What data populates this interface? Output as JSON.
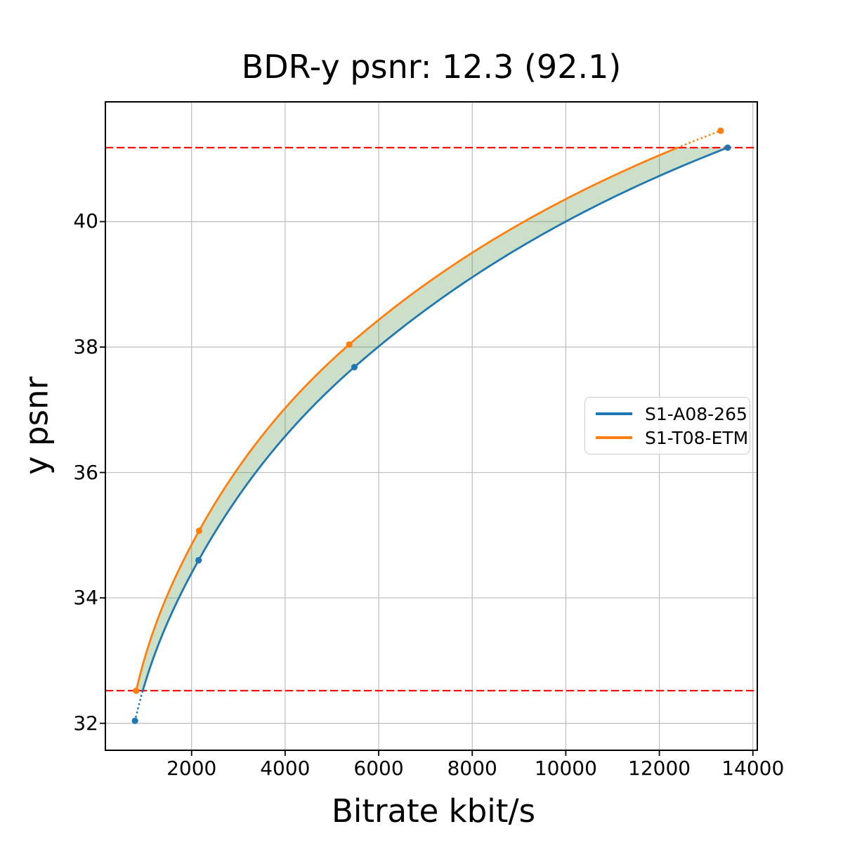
{
  "title": "BDR-y psnr: 12.3 (92.1)",
  "chart_data": {
    "type": "line",
    "title": "BDR-y psnr: 12.3 (92.1)",
    "xlabel": "Bitrate kbit/s",
    "ylabel": "y psnr",
    "xlim": [
      157,
      14094
    ],
    "ylim": [
      31.57,
      41.91
    ],
    "xticks": [
      2000,
      4000,
      6000,
      8000,
      10000,
      12000,
      14000
    ],
    "yticks": [
      32,
      34,
      36,
      38,
      40
    ],
    "grid": true,
    "grid_color": "#bdbdbd",
    "frame_color": "#000000",
    "interpolation": "pchip-log-x",
    "series": [
      {
        "name": "S1-A08-265",
        "color": "#1f77b4",
        "points": [
          [
            790,
            32.04
          ],
          [
            2150,
            34.6
          ],
          [
            5480,
            37.68
          ],
          [
            13460,
            41.18
          ]
        ]
      },
      {
        "name": "S1-T08-ETM",
        "color": "#ff7f0e",
        "points": [
          [
            815,
            32.52
          ],
          [
            2160,
            35.07
          ],
          [
            5370,
            38.04
          ],
          [
            13310,
            41.45
          ]
        ]
      }
    ],
    "overlap_hlines": {
      "low": 32.52,
      "high": 41.18,
      "color": "#ff0000",
      "style": "dashed"
    },
    "fill_between": {
      "color": "rgba(70,140,60,0.28)"
    },
    "outside_overlap_style": "dotted",
    "legend_position": "center-right"
  }
}
